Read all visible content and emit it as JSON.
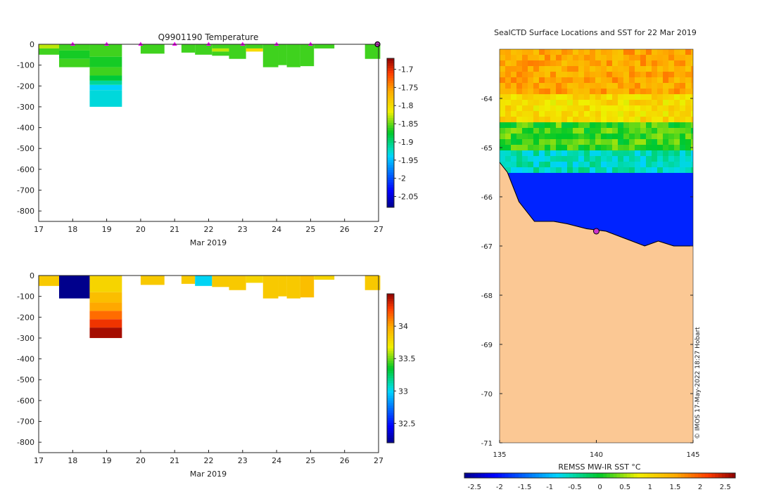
{
  "chart_data": [
    {
      "id": "temperature-section",
      "type": "heatmap",
      "title": "Q9901190  Temperature",
      "xlabel": "Mar 2019",
      "ylabel": "",
      "xlim": [
        17,
        27
      ],
      "ylim": [
        -850,
        0
      ],
      "x_ticks": [
        "17",
        "18",
        "19",
        "20",
        "21",
        "22",
        "23",
        "24",
        "25",
        "26",
        "27"
      ],
      "y_ticks": [
        "0",
        "-100",
        "-200",
        "-300",
        "-400",
        "-500",
        "-600",
        "-700",
        "-800"
      ],
      "colorbar": {
        "ticks": [
          "-1.7",
          "-1.75",
          "-1.8",
          "-1.85",
          "-1.9",
          "-1.95",
          "-2",
          "-2.05"
        ],
        "range": [
          -2.08,
          -1.67
        ]
      },
      "profiles": [
        {
          "x0": 17.0,
          "x1": 17.6,
          "layers": [
            {
              "d0": 0,
              "d1": 20,
              "v": -1.83
            },
            {
              "d0": 20,
              "d1": 50,
              "v": -1.86
            }
          ]
        },
        {
          "x0": 17.6,
          "x1": 18.5,
          "layers": [
            {
              "d0": 0,
              "d1": 30,
              "v": -1.86
            },
            {
              "d0": 30,
              "d1": 70,
              "v": -1.87
            },
            {
              "d0": 70,
              "d1": 110,
              "v": -1.86
            }
          ]
        },
        {
          "x0": 18.5,
          "x1": 19.45,
          "layers": [
            {
              "d0": 0,
              "d1": 60,
              "v": -1.86
            },
            {
              "d0": 60,
              "d1": 110,
              "v": -1.87
            },
            {
              "d0": 110,
              "d1": 150,
              "v": -1.86
            },
            {
              "d0": 150,
              "d1": 175,
              "v": -1.88
            },
            {
              "d0": 175,
              "d1": 195,
              "v": -1.91
            },
            {
              "d0": 195,
              "d1": 220,
              "v": -1.94
            },
            {
              "d0": 220,
              "d1": 300,
              "v": -1.93
            }
          ]
        },
        {
          "x0": 20.0,
          "x1": 20.7,
          "layers": [
            {
              "d0": 0,
              "d1": 45,
              "v": -1.86
            }
          ]
        },
        {
          "x0": 21.2,
          "x1": 21.6,
          "layers": [
            {
              "d0": 0,
              "d1": 40,
              "v": -1.86
            }
          ]
        },
        {
          "x0": 21.6,
          "x1": 22.1,
          "layers": [
            {
              "d0": 0,
              "d1": 50,
              "v": -1.86
            }
          ]
        },
        {
          "x0": 22.1,
          "x1": 22.6,
          "layers": [
            {
              "d0": 0,
              "d1": 20,
              "v": -1.86
            },
            {
              "d0": 20,
              "d1": 35,
              "v": -1.83
            },
            {
              "d0": 35,
              "d1": 55,
              "v": -1.86
            }
          ]
        },
        {
          "x0": 22.6,
          "x1": 23.1,
          "layers": [
            {
              "d0": 0,
              "d1": 70,
              "v": -1.86
            }
          ]
        },
        {
          "x0": 23.1,
          "x1": 23.6,
          "layers": [
            {
              "d0": 0,
              "d1": 20,
              "v": -1.86
            },
            {
              "d0": 20,
              "d1": 35,
              "v": -1.8
            }
          ]
        },
        {
          "x0": 23.6,
          "x1": 24.05,
          "layers": [
            {
              "d0": 0,
              "d1": 110,
              "v": -1.86
            }
          ]
        },
        {
          "x0": 24.05,
          "x1": 24.3,
          "layers": [
            {
              "d0": 0,
              "d1": 100,
              "v": -1.86
            }
          ]
        },
        {
          "x0": 24.3,
          "x1": 24.7,
          "layers": [
            {
              "d0": 0,
              "d1": 110,
              "v": -1.86
            }
          ]
        },
        {
          "x0": 24.7,
          "x1": 25.1,
          "layers": [
            {
              "d0": 0,
              "d1": 105,
              "v": -1.86
            }
          ]
        },
        {
          "x0": 25.1,
          "x1": 25.7,
          "layers": [
            {
              "d0": 0,
              "d1": 20,
              "v": -1.86
            }
          ]
        },
        {
          "x0": 26.6,
          "x1": 27.05,
          "layers": [
            {
              "d0": 0,
              "d1": 70,
              "v": -1.86
            }
          ]
        }
      ],
      "station_markers": [
        18,
        19,
        20,
        21,
        22,
        23,
        24,
        25
      ],
      "current_station": 27.0
    },
    {
      "id": "salinity-section",
      "type": "heatmap",
      "title": "",
      "xlabel": "Mar 2019",
      "ylabel": "",
      "xlim": [
        17,
        27
      ],
      "ylim": [
        -850,
        0
      ],
      "x_ticks": [
        "17",
        "18",
        "19",
        "20",
        "21",
        "22",
        "23",
        "24",
        "25",
        "26",
        "27"
      ],
      "y_ticks": [
        "0",
        "-100",
        "-200",
        "-300",
        "-400",
        "-500",
        "-600",
        "-700",
        "-800"
      ],
      "colorbar": {
        "ticks": [
          "34",
          "33.5",
          "33",
          "32.5"
        ],
        "range": [
          32.2,
          34.5
        ]
      },
      "profiles": [
        {
          "x0": 17.0,
          "x1": 17.6,
          "layers": [
            {
              "d0": 0,
              "d1": 50,
              "v": 33.85
            }
          ]
        },
        {
          "x0": 17.6,
          "x1": 18.5,
          "layers": [
            {
              "d0": 0,
              "d1": 110,
              "v": 32.2
            }
          ]
        },
        {
          "x0": 18.5,
          "x1": 19.45,
          "layers": [
            {
              "d0": 0,
              "d1": 80,
              "v": 33.8
            },
            {
              "d0": 80,
              "d1": 130,
              "v": 33.9
            },
            {
              "d0": 130,
              "d1": 170,
              "v": 34.0
            },
            {
              "d0": 170,
              "d1": 210,
              "v": 34.15
            },
            {
              "d0": 210,
              "d1": 250,
              "v": 34.3
            },
            {
              "d0": 250,
              "d1": 300,
              "v": 34.45
            }
          ]
        },
        {
          "x0": 20.0,
          "x1": 20.7,
          "layers": [
            {
              "d0": 0,
              "d1": 45,
              "v": 33.85
            }
          ]
        },
        {
          "x0": 21.2,
          "x1": 21.6,
          "layers": [
            {
              "d0": 0,
              "d1": 40,
              "v": 33.85
            }
          ]
        },
        {
          "x0": 21.6,
          "x1": 22.1,
          "layers": [
            {
              "d0": 0,
              "d1": 50,
              "v": 33.0
            }
          ]
        },
        {
          "x0": 22.1,
          "x1": 22.6,
          "layers": [
            {
              "d0": 0,
              "d1": 55,
              "v": 33.85
            }
          ]
        },
        {
          "x0": 22.6,
          "x1": 23.1,
          "layers": [
            {
              "d0": 0,
              "d1": 70,
              "v": 33.85
            }
          ]
        },
        {
          "x0": 23.1,
          "x1": 23.6,
          "layers": [
            {
              "d0": 0,
              "d1": 35,
              "v": 33.8
            }
          ]
        },
        {
          "x0": 23.6,
          "x1": 24.05,
          "layers": [
            {
              "d0": 0,
              "d1": 110,
              "v": 33.85
            }
          ]
        },
        {
          "x0": 24.05,
          "x1": 24.3,
          "layers": [
            {
              "d0": 0,
              "d1": 100,
              "v": 33.85
            }
          ]
        },
        {
          "x0": 24.3,
          "x1": 24.7,
          "layers": [
            {
              "d0": 0,
              "d1": 110,
              "v": 33.85
            }
          ]
        },
        {
          "x0": 24.7,
          "x1": 25.1,
          "layers": [
            {
              "d0": 0,
              "d1": 105,
              "v": 33.9
            }
          ]
        },
        {
          "x0": 25.1,
          "x1": 25.7,
          "layers": [
            {
              "d0": 0,
              "d1": 20,
              "v": 33.8
            }
          ]
        },
        {
          "x0": 26.6,
          "x1": 27.05,
          "layers": [
            {
              "d0": 0,
              "d1": 70,
              "v": 33.85
            }
          ]
        }
      ]
    },
    {
      "id": "sst-map",
      "type": "heatmap",
      "title": "SealCTD Surface Locations and SST for 22 Mar 2019",
      "xlabel": "",
      "ylabel": "",
      "xlim": [
        135,
        145
      ],
      "ylim": [
        -71,
        -63
      ],
      "x_ticks": [
        "135",
        "140",
        "145"
      ],
      "y_ticks": [
        "-64",
        "-65",
        "-66",
        "-67",
        "-68",
        "-69",
        "-70",
        "-71"
      ],
      "colorbar": {
        "label": "REMSS MW-IR SST °C",
        "ticks": [
          "-2.5",
          "-2",
          "-1.5",
          "-1",
          "-0.5",
          "0",
          "0.5",
          "1",
          "1.5",
          "2",
          "2.5"
        ],
        "range": [
          -2.7,
          2.7
        ]
      },
      "sst_bands": [
        {
          "lat0": -63.0,
          "lat1": -63.9,
          "v": 1.5
        },
        {
          "lat0": -63.9,
          "lat1": -64.5,
          "v": 1.0
        },
        {
          "lat0": -64.5,
          "lat1": -65.1,
          "v": 0.2
        },
        {
          "lat0": -65.1,
          "lat1": -65.5,
          "v": -0.6
        },
        {
          "lat0": -65.5,
          "lat1": -67.2,
          "v": -1.9
        }
      ],
      "coastline": [
        [
          135.0,
          -65.3
        ],
        [
          135.4,
          -65.5
        ],
        [
          136.0,
          -66.1
        ],
        [
          136.8,
          -66.5
        ],
        [
          137.8,
          -66.5
        ],
        [
          138.5,
          -66.55
        ],
        [
          139.5,
          -66.65
        ],
        [
          140.5,
          -66.7
        ],
        [
          141.5,
          -66.85
        ],
        [
          142.5,
          -67.0
        ],
        [
          143.2,
          -66.9
        ],
        [
          144.0,
          -67.0
        ],
        [
          145.0,
          -67.0
        ]
      ],
      "ctd_location": [
        140.0,
        -66.7
      ],
      "credit": "© IMOS 17-May-2022 18:27 Hobart"
    }
  ],
  "colors": {
    "land": "#fbc894",
    "marker": "#ff00ff",
    "current_marker": "#cc33cc",
    "deep_ice": "#0044c0",
    "axis": "#222222"
  }
}
